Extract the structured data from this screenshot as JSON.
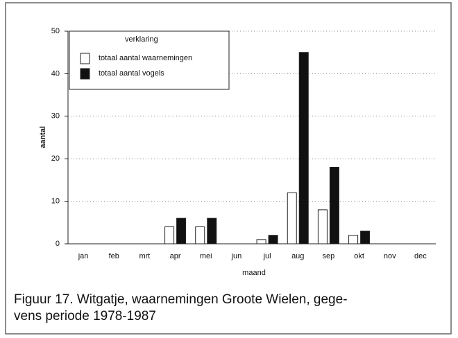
{
  "chart_data": {
    "type": "bar",
    "caption": [
      "Figuur 17. Witgatje, waarnemingen Groote Wielen, gege-",
      "vens periode 1978-1987"
    ],
    "xlabel": "maand",
    "ylabel": "aantal",
    "legend_title": "verklaring",
    "categories": [
      "jan",
      "feb",
      "mrt",
      "apr",
      "mei",
      "jun",
      "jul",
      "aug",
      "sep",
      "okt",
      "nov",
      "dec"
    ],
    "series": [
      {
        "name": "totaal aantal waarnemingen",
        "color": "#ffffff",
        "values": [
          0,
          0,
          0,
          4,
          4,
          0,
          1,
          12,
          8,
          2,
          0,
          0
        ]
      },
      {
        "name": "totaal aantal vogels",
        "color": "#111111",
        "values": [
          0,
          0,
          0,
          6,
          6,
          0,
          2,
          45,
          18,
          3,
          0,
          0
        ]
      }
    ],
    "ylim": [
      0,
      50
    ],
    "yticks": [
      0,
      10,
      20,
      30,
      40,
      50
    ],
    "grid": true,
    "legend": "upper left"
  }
}
